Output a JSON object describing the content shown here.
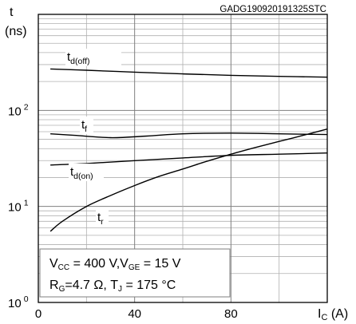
{
  "chart_data": {
    "type": "line",
    "source_id": "GADG190920191325STC",
    "y_axis": {
      "symbol": "t",
      "unit": "(ns)",
      "scale": "log",
      "ylim": [
        1,
        1000
      ],
      "tick_labels": [
        {
          "value": 1,
          "base": "10",
          "exp": "0"
        },
        {
          "value": 10,
          "base": "10",
          "exp": "1"
        },
        {
          "value": 100,
          "base": "10",
          "exp": "2"
        }
      ]
    },
    "x_axis": {
      "label_main": "I",
      "label_sub": "C",
      "label_unit": " (A)",
      "xlim": [
        0,
        120
      ],
      "tick_values": [
        0,
        40,
        80,
        120
      ],
      "tick_labels": [
        "0",
        "40",
        "80"
      ]
    },
    "grid": true,
    "series": [
      {
        "name_main": "t",
        "name_sub": "d(off)",
        "x": [
          5,
          20,
          40,
          60,
          80,
          100,
          120
        ],
        "y": [
          270,
          262,
          250,
          240,
          232,
          226,
          222
        ]
      },
      {
        "name_main": "t",
        "name_sub": "f",
        "x": [
          5,
          15,
          30,
          45,
          60,
          80,
          100,
          120
        ],
        "y": [
          57,
          55,
          52,
          54,
          57,
          58,
          57,
          56
        ]
      },
      {
        "name_main": "t",
        "name_sub": "d(on)",
        "x": [
          5,
          20,
          40,
          60,
          80,
          100,
          120
        ],
        "y": [
          27,
          28,
          30,
          32,
          34,
          35,
          36
        ]
      },
      {
        "name_main": "t",
        "name_sub": "r",
        "x": [
          5,
          10,
          20,
          30,
          40,
          50,
          60,
          70,
          80,
          90,
          100,
          110,
          120
        ],
        "y": [
          5.5,
          7,
          10,
          13,
          16.5,
          20.5,
          24.5,
          29.5,
          35,
          41,
          47.5,
          55,
          64
        ]
      }
    ],
    "conditions": [
      {
        "segments": [
          {
            "t": "V",
            "s": ""
          },
          {
            "t": "",
            "s": "CC"
          },
          {
            "t": " = 400 V,V",
            "s": ""
          },
          {
            "t": "",
            "s": "GE"
          },
          {
            "t": " = 15 V",
            "s": ""
          }
        ]
      },
      {
        "segments": [
          {
            "t": "R",
            "s": ""
          },
          {
            "t": "",
            "s": "G"
          },
          {
            "t": "=4.7 Ω, T",
            "s": ""
          },
          {
            "t": "",
            "s": "J"
          },
          {
            "t": " = 175 °C",
            "s": ""
          }
        ]
      }
    ]
  }
}
